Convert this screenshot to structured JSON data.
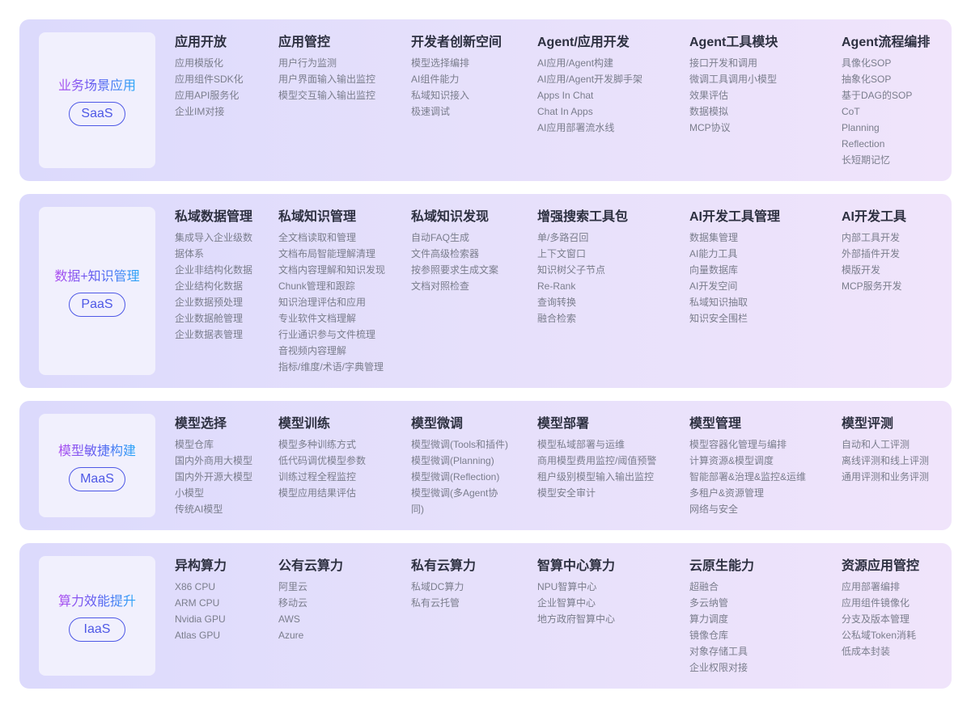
{
  "rows": [
    {
      "layer": "业务场景应用",
      "badge": "SaaS",
      "cols": [
        {
          "title": "应用开放",
          "items": [
            "应用模版化",
            "应用组件SDK化",
            "应用API服务化",
            "企业IM对接"
          ]
        },
        {
          "title": "应用管控",
          "items": [
            "用户行为监测",
            "用户界面输入输出监控",
            "模型交互输入输出监控"
          ]
        },
        {
          "title": "开发者创新空间",
          "items": [
            "模型选择编排",
            "AI组件能力",
            "私域知识接入",
            "极速调试"
          ]
        },
        {
          "title": "Agent/应用开发",
          "items": [
            "AI应用/Agent构建",
            "AI应用/Agent开发脚手架",
            "Apps In Chat",
            "Chat In Apps",
            "AI应用部署流水线"
          ]
        },
        {
          "title": "Agent工具模块",
          "items": [
            "接口开发和调用",
            "微调工具调用小模型",
            "效果评估",
            "数据模拟",
            "MCP协议"
          ]
        },
        {
          "title": "Agent流程编排",
          "items": [
            "具像化SOP",
            "抽象化SOP",
            "基于DAG的SOP",
            "CoT",
            "Planning",
            "Reflection",
            "长短期记忆"
          ]
        }
      ]
    },
    {
      "layer": "数据+知识管理",
      "badge": "PaaS",
      "cols": [
        {
          "title": "私域数据管理",
          "items": [
            "集成导入企业级数",
            "据体系",
            "企业非结构化数据",
            "企业结构化数据",
            "企业数据预处理",
            "企业数据舱管理",
            "企业数据表管理"
          ]
        },
        {
          "title": "私域知识管理",
          "items": [
            "全文档读取和管理",
            "文档布局智能理解清理",
            "文档内容理解和知识发现",
            "Chunk管理和跟踪",
            "知识治理评估和应用",
            "专业软件文档理解",
            "行业通识参与文件梳理",
            "音视频内容理解",
            "指标/维度/术语/字典管理"
          ]
        },
        {
          "title": "私域知识发现",
          "items": [
            "自动FAQ生成",
            "文件高级检索器",
            "按参照要求生成文案",
            "文档对照检查"
          ]
        },
        {
          "title": "增强搜索工具包",
          "items": [
            "单/多路召回",
            "上下文窗口",
            "知识树父子节点",
            "Re-Rank",
            "查询转换",
            "融合检索"
          ]
        },
        {
          "title": "AI开发工具管理",
          "items": [
            "数据集管理",
            "AI能力工具",
            "向量数据库",
            "AI开发空间",
            "私域知识抽取",
            "知识安全围栏"
          ]
        },
        {
          "title": "AI开发工具",
          "items": [
            "内部工具开发",
            "外部插件开发",
            "模版开发",
            "MCP服务开发"
          ]
        }
      ]
    },
    {
      "layer": "模型敏捷构建",
      "badge": "MaaS",
      "cols": [
        {
          "title": "模型选择",
          "items": [
            "模型仓库",
            "国内外商用大模型",
            "国内外开源大模型",
            "小模型",
            "传统AI模型"
          ]
        },
        {
          "title": "模型训练",
          "items": [
            "模型多种训练方式",
            "低代码调优模型参数",
            "训练过程全程监控",
            "模型应用结果评估"
          ]
        },
        {
          "title": "模型微调",
          "items": [
            "模型微调(Tools和插件)",
            "模型微调(Planning)",
            "模型微调(Reflection)",
            "模型微调(多Agent协",
            "同)"
          ]
        },
        {
          "title": "模型部署",
          "items": [
            "模型私域部署与运维",
            "商用模型费用监控/阈值预警",
            "租户级别模型输入输出监控",
            "模型安全审计"
          ]
        },
        {
          "title": "模型管理",
          "items": [
            "模型容器化管理与编排",
            "计算资源&模型调度",
            "智能部署&治理&监控&运维",
            "多租户&资源管理",
            "网络与安全"
          ]
        },
        {
          "title": "模型评测",
          "items": [
            "自动和人工评测",
            "离线评测和线上评测",
            "通用评测和业务评测"
          ]
        }
      ]
    },
    {
      "layer": "算力效能提升",
      "badge": "IaaS",
      "cols": [
        {
          "title": "异构算力",
          "items": [
            "X86 CPU",
            "ARM CPU",
            "Nvidia GPU",
            "Atlas GPU"
          ]
        },
        {
          "title": "公有云算力",
          "items": [
            "阿里云",
            "移动云",
            "AWS",
            "Azure"
          ]
        },
        {
          "title": "私有云算力",
          "items": [
            "私域DC算力",
            "私有云托管"
          ]
        },
        {
          "title": "智算中心算力",
          "items": [
            "NPU智算中心",
            "企业智算中心",
            "地方政府智算中心"
          ]
        },
        {
          "title": "云原生能力",
          "items": [
            "超融合",
            "多云纳管",
            "算力调度",
            "镜像仓库",
            "对象存储工具",
            "企业权限对接"
          ]
        },
        {
          "title": "资源应用管控",
          "items": [
            "应用部署编排",
            "应用组件镜像化",
            "分支及版本管理",
            "公私域Token消耗",
            "低成本封装"
          ]
        }
      ]
    }
  ]
}
